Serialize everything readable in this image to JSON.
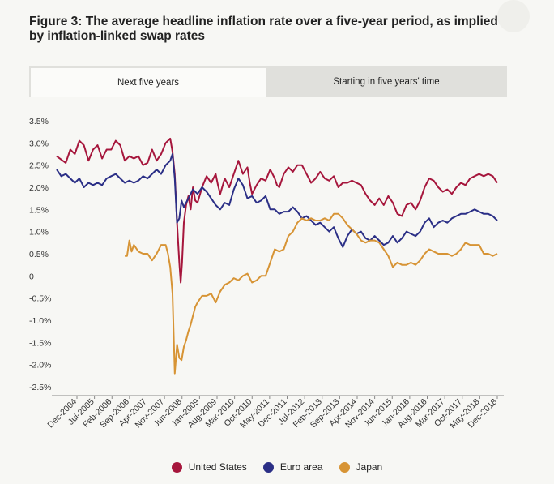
{
  "title": "Figure 3: The average headline inflation rate over a five-year period, as implied by inflation-linked swap rates",
  "tabs": [
    {
      "label": "Next five years",
      "active": true
    },
    {
      "label": "Starting in five years' time",
      "active": false
    }
  ],
  "chart_data": {
    "type": "line",
    "title": "Figure 3: The average headline inflation rate over a five-year period, as implied by inflation-linked swap rates",
    "xlabel": "",
    "ylabel": "",
    "ylim": [
      -2.5,
      3.5
    ],
    "yticks": [
      "3.5%",
      "3.0%",
      "2.5%",
      "2.0%",
      "1.5%",
      "1.0%",
      "0.5%",
      "0",
      "-0.5%",
      "-1.0%",
      "-1.5%",
      "-2.0%",
      "-2.5%"
    ],
    "xticks": [
      "Dec-2004",
      "Jul-2005",
      "Feb-2006",
      "Sep-2006",
      "Apr-2007",
      "Nov-2007",
      "Jun-2008",
      "Jan-2009",
      "Aug-2009",
      "Mar-2010",
      "Oct-2010",
      "May-2011",
      "Dec-2011",
      "Jul-2012",
      "Feb-2013",
      "Sep-2013",
      "Apr-2014",
      "Nov-2014",
      "Jun-2015",
      "Jan-2016",
      "Aug-2016",
      "Mar-2017",
      "Oct-2017",
      "May-2018",
      "Dec-2018"
    ],
    "grid": false,
    "legend_position": "bottom",
    "series": [
      {
        "name": "United States",
        "color": "#a6163c",
        "points": [
          [
            0,
            2.7
          ],
          [
            2,
            2.55
          ],
          [
            3,
            2.85
          ],
          [
            4,
            2.75
          ],
          [
            5,
            3.05
          ],
          [
            6,
            2.95
          ],
          [
            7,
            2.6
          ],
          [
            8,
            2.85
          ],
          [
            9,
            2.95
          ],
          [
            10,
            2.65
          ],
          [
            11,
            2.85
          ],
          [
            12,
            2.85
          ],
          [
            13,
            3.05
          ],
          [
            14,
            2.95
          ],
          [
            15,
            2.6
          ],
          [
            16,
            2.7
          ],
          [
            17,
            2.65
          ],
          [
            18,
            2.7
          ],
          [
            19,
            2.5
          ],
          [
            20,
            2.55
          ],
          [
            21,
            2.85
          ],
          [
            22,
            2.6
          ],
          [
            23,
            2.75
          ],
          [
            24,
            3.0
          ],
          [
            25,
            3.1
          ],
          [
            25.5,
            2.8
          ],
          [
            26,
            2.3
          ],
          [
            26.5,
            1.2
          ],
          [
            27,
            0.3
          ],
          [
            27.3,
            -0.15
          ],
          [
            27.6,
            0.3
          ],
          [
            28,
            1.2
          ],
          [
            28.5,
            1.6
          ],
          [
            29,
            1.8
          ],
          [
            29.5,
            1.5
          ],
          [
            30,
            2.0
          ],
          [
            30.5,
            1.7
          ],
          [
            31,
            1.65
          ],
          [
            32,
            2.0
          ],
          [
            33,
            2.25
          ],
          [
            34,
            2.1
          ],
          [
            35,
            2.3
          ],
          [
            35.5,
            2.05
          ],
          [
            36,
            1.85
          ],
          [
            37,
            2.2
          ],
          [
            38,
            2.0
          ],
          [
            39,
            2.3
          ],
          [
            40,
            2.6
          ],
          [
            41,
            2.3
          ],
          [
            42,
            2.45
          ],
          [
            42.5,
            2.1
          ],
          [
            43,
            1.85
          ],
          [
            44,
            2.05
          ],
          [
            45,
            2.2
          ],
          [
            46,
            2.15
          ],
          [
            47,
            2.4
          ],
          [
            48,
            2.2
          ],
          [
            48.5,
            2.05
          ],
          [
            49,
            2.0
          ],
          [
            50,
            2.3
          ],
          [
            51,
            2.45
          ],
          [
            52,
            2.35
          ],
          [
            53,
            2.5
          ],
          [
            54,
            2.5
          ],
          [
            55,
            2.3
          ],
          [
            56,
            2.1
          ],
          [
            57,
            2.2
          ],
          [
            58,
            2.35
          ],
          [
            59,
            2.2
          ],
          [
            60,
            2.15
          ],
          [
            61,
            2.25
          ],
          [
            62,
            2.0
          ],
          [
            63,
            2.1
          ],
          [
            64,
            2.1
          ],
          [
            65,
            2.15
          ],
          [
            66,
            2.1
          ],
          [
            67,
            2.05
          ],
          [
            68,
            1.85
          ],
          [
            69,
            1.7
          ],
          [
            70,
            1.6
          ],
          [
            71,
            1.75
          ],
          [
            72,
            1.6
          ],
          [
            73,
            1.8
          ],
          [
            74,
            1.65
          ],
          [
            75,
            1.4
          ],
          [
            76,
            1.35
          ],
          [
            77,
            1.6
          ],
          [
            78,
            1.65
          ],
          [
            79,
            1.5
          ],
          [
            80,
            1.7
          ],
          [
            81,
            2.0
          ],
          [
            82,
            2.2
          ],
          [
            83,
            2.15
          ],
          [
            84,
            2.0
          ],
          [
            85,
            1.9
          ],
          [
            86,
            1.95
          ],
          [
            87,
            1.85
          ],
          [
            88,
            2.0
          ],
          [
            89,
            2.1
          ],
          [
            90,
            2.05
          ],
          [
            91,
            2.2
          ],
          [
            92,
            2.25
          ],
          [
            93,
            2.3
          ],
          [
            94,
            2.25
          ],
          [
            95,
            2.3
          ],
          [
            96,
            2.25
          ],
          [
            97,
            2.1
          ]
        ]
      },
      {
        "name": "Euro area",
        "color": "#2b2f86",
        "points": [
          [
            0,
            2.4
          ],
          [
            1,
            2.25
          ],
          [
            2,
            2.3
          ],
          [
            3,
            2.2
          ],
          [
            4,
            2.1
          ],
          [
            5,
            2.2
          ],
          [
            6,
            2.0
          ],
          [
            7,
            2.1
          ],
          [
            8,
            2.05
          ],
          [
            9,
            2.1
          ],
          [
            10,
            2.05
          ],
          [
            11,
            2.2
          ],
          [
            12,
            2.25
          ],
          [
            13,
            2.3
          ],
          [
            14,
            2.2
          ],
          [
            15,
            2.1
          ],
          [
            16,
            2.15
          ],
          [
            17,
            2.1
          ],
          [
            18,
            2.15
          ],
          [
            19,
            2.25
          ],
          [
            20,
            2.2
          ],
          [
            21,
            2.3
          ],
          [
            22,
            2.4
          ],
          [
            23,
            2.3
          ],
          [
            24,
            2.5
          ],
          [
            25,
            2.6
          ],
          [
            25.5,
            2.75
          ],
          [
            26,
            2.2
          ],
          [
            26.5,
            1.2
          ],
          [
            27,
            1.3
          ],
          [
            27.5,
            1.7
          ],
          [
            28,
            1.55
          ],
          [
            29,
            1.75
          ],
          [
            30,
            1.95
          ],
          [
            31,
            1.85
          ],
          [
            32,
            2.0
          ],
          [
            33,
            1.9
          ],
          [
            34,
            1.75
          ],
          [
            35,
            1.6
          ],
          [
            36,
            1.5
          ],
          [
            37,
            1.65
          ],
          [
            38,
            1.6
          ],
          [
            39,
            1.95
          ],
          [
            40,
            2.2
          ],
          [
            41,
            2.05
          ],
          [
            42,
            1.75
          ],
          [
            43,
            1.8
          ],
          [
            44,
            1.65
          ],
          [
            45,
            1.7
          ],
          [
            46,
            1.8
          ],
          [
            47,
            1.5
          ],
          [
            48,
            1.5
          ],
          [
            49,
            1.4
          ],
          [
            50,
            1.45
          ],
          [
            51,
            1.45
          ],
          [
            52,
            1.55
          ],
          [
            53,
            1.45
          ],
          [
            54,
            1.3
          ],
          [
            55,
            1.35
          ],
          [
            56,
            1.25
          ],
          [
            57,
            1.15
          ],
          [
            58,
            1.2
          ],
          [
            59,
            1.1
          ],
          [
            60,
            1.0
          ],
          [
            61,
            1.1
          ],
          [
            62,
            0.85
          ],
          [
            63,
            0.65
          ],
          [
            64,
            0.9
          ],
          [
            65,
            1.05
          ],
          [
            66,
            0.95
          ],
          [
            67,
            1.0
          ],
          [
            68,
            0.85
          ],
          [
            69,
            0.8
          ],
          [
            70,
            0.9
          ],
          [
            71,
            0.8
          ],
          [
            72,
            0.7
          ],
          [
            73,
            0.75
          ],
          [
            74,
            0.9
          ],
          [
            75,
            0.75
          ],
          [
            76,
            0.85
          ],
          [
            77,
            1.0
          ],
          [
            78,
            0.95
          ],
          [
            79,
            0.9
          ],
          [
            80,
            1.0
          ],
          [
            81,
            1.2
          ],
          [
            82,
            1.3
          ],
          [
            83,
            1.1
          ],
          [
            84,
            1.2
          ],
          [
            85,
            1.25
          ],
          [
            86,
            1.2
          ],
          [
            87,
            1.3
          ],
          [
            88,
            1.35
          ],
          [
            89,
            1.4
          ],
          [
            90,
            1.4
          ],
          [
            91,
            1.45
          ],
          [
            92,
            1.5
          ],
          [
            93,
            1.45
          ],
          [
            94,
            1.4
          ],
          [
            95,
            1.4
          ],
          [
            96,
            1.35
          ],
          [
            97,
            1.25
          ]
        ]
      },
      {
        "name": "Japan",
        "color": "#d79435",
        "points": [
          [
            15,
            0.45
          ],
          [
            15.5,
            0.45
          ],
          [
            16,
            0.8
          ],
          [
            16.5,
            0.55
          ],
          [
            17,
            0.7
          ],
          [
            18,
            0.55
          ],
          [
            19,
            0.5
          ],
          [
            20,
            0.5
          ],
          [
            21,
            0.35
          ],
          [
            22,
            0.5
          ],
          [
            23,
            0.7
          ],
          [
            24,
            0.7
          ],
          [
            24.5,
            0.5
          ],
          [
            25,
            0.2
          ],
          [
            25.5,
            -0.4
          ],
          [
            26,
            -2.2
          ],
          [
            26.5,
            -1.55
          ],
          [
            27,
            -1.85
          ],
          [
            27.5,
            -1.9
          ],
          [
            28,
            -1.6
          ],
          [
            28.5,
            -1.45
          ],
          [
            29,
            -1.25
          ],
          [
            29.5,
            -1.1
          ],
          [
            30,
            -0.9
          ],
          [
            30.5,
            -0.7
          ],
          [
            31,
            -0.6
          ],
          [
            32,
            -0.45
          ],
          [
            33,
            -0.45
          ],
          [
            34,
            -0.4
          ],
          [
            35,
            -0.6
          ],
          [
            36,
            -0.35
          ],
          [
            37,
            -0.2
          ],
          [
            38,
            -0.15
          ],
          [
            39,
            -0.05
          ],
          [
            40,
            -0.1
          ],
          [
            41,
            0.0
          ],
          [
            42,
            0.05
          ],
          [
            43,
            -0.15
          ],
          [
            44,
            -0.1
          ],
          [
            45,
            0.0
          ],
          [
            46,
            0.0
          ],
          [
            47,
            0.3
          ],
          [
            48,
            0.6
          ],
          [
            49,
            0.55
          ],
          [
            50,
            0.6
          ],
          [
            51,
            0.9
          ],
          [
            52,
            1.0
          ],
          [
            53,
            1.2
          ],
          [
            54,
            1.3
          ],
          [
            55,
            1.25
          ],
          [
            56,
            1.3
          ],
          [
            57,
            1.25
          ],
          [
            58,
            1.25
          ],
          [
            59,
            1.3
          ],
          [
            60,
            1.25
          ],
          [
            61,
            1.4
          ],
          [
            62,
            1.4
          ],
          [
            63,
            1.3
          ],
          [
            64,
            1.15
          ],
          [
            65,
            1.05
          ],
          [
            66,
            0.95
          ],
          [
            67,
            0.8
          ],
          [
            68,
            0.75
          ],
          [
            69,
            0.8
          ],
          [
            70,
            0.8
          ],
          [
            71,
            0.75
          ],
          [
            72,
            0.6
          ],
          [
            73,
            0.45
          ],
          [
            74,
            0.2
          ],
          [
            75,
            0.3
          ],
          [
            76,
            0.25
          ],
          [
            77,
            0.25
          ],
          [
            78,
            0.3
          ],
          [
            79,
            0.25
          ],
          [
            80,
            0.35
          ],
          [
            81,
            0.5
          ],
          [
            82,
            0.6
          ],
          [
            83,
            0.55
          ],
          [
            84,
            0.5
          ],
          [
            85,
            0.5
          ],
          [
            86,
            0.5
          ],
          [
            87,
            0.45
          ],
          [
            88,
            0.5
          ],
          [
            89,
            0.6
          ],
          [
            90,
            0.75
          ],
          [
            91,
            0.7
          ],
          [
            92,
            0.7
          ],
          [
            93,
            0.7
          ],
          [
            94,
            0.5
          ],
          [
            95,
            0.5
          ],
          [
            96,
            0.45
          ],
          [
            97,
            0.5
          ]
        ]
      }
    ]
  }
}
